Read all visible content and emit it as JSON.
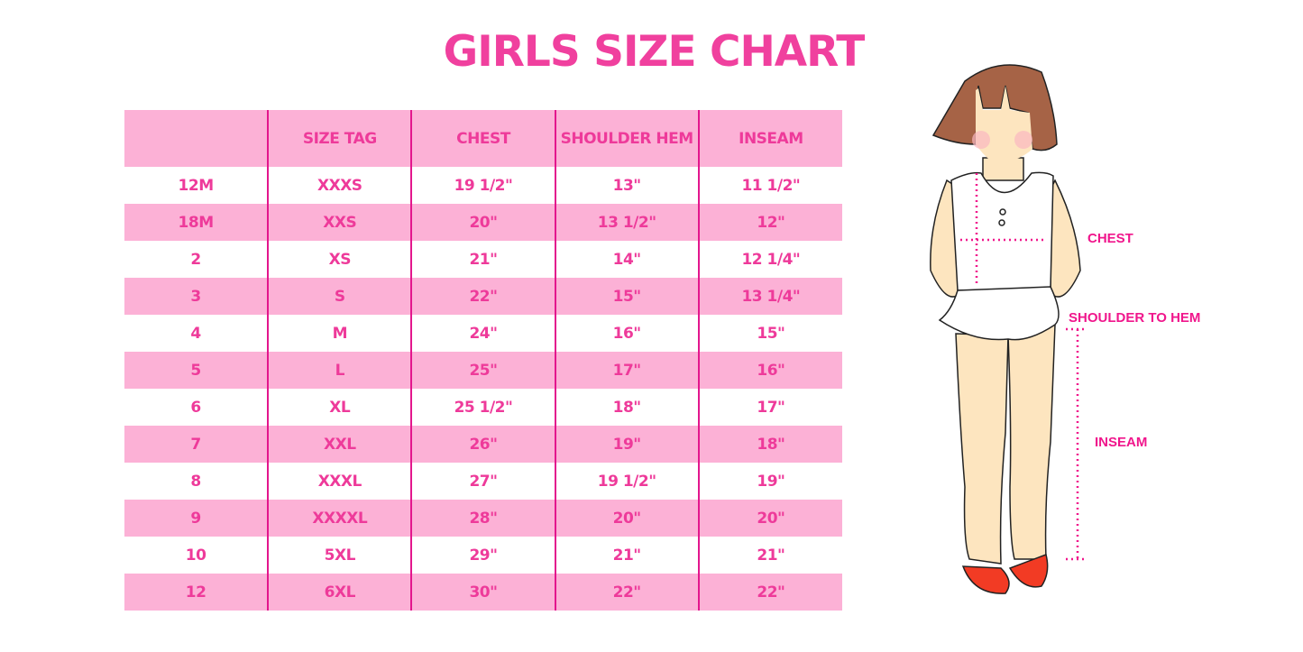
{
  "title": "GIRLS SIZE CHART",
  "table": {
    "headers": [
      "",
      "SIZE TAG",
      "CHEST",
      "SHOULDER HEM",
      "INSEAM"
    ],
    "rows": [
      [
        "12M",
        "XXXS",
        "19 1/2\"",
        "13\"",
        "11 1/2\""
      ],
      [
        "18M",
        "XXS",
        "20\"",
        "13 1/2\"",
        "12\""
      ],
      [
        "2",
        "XS",
        "21\"",
        "14\"",
        "12 1/4\""
      ],
      [
        "3",
        "S",
        "22\"",
        "15\"",
        "13 1/4\""
      ],
      [
        "4",
        "M",
        "24\"",
        "16\"",
        "15\""
      ],
      [
        "5",
        "L",
        "25\"",
        "17\"",
        "16\""
      ],
      [
        "6",
        "XL",
        "25 1/2\"",
        "18\"",
        "17\""
      ],
      [
        "7",
        "XXL",
        "26\"",
        "19\"",
        "18\""
      ],
      [
        "8",
        "XXXL",
        "27\"",
        "19 1/2\"",
        "19\""
      ],
      [
        "9",
        "XXXXL",
        "28\"",
        "20\"",
        "20\""
      ],
      [
        "10",
        "5XL",
        "29\"",
        "21\"",
        "21\""
      ],
      [
        "12",
        "6XL",
        "30\"",
        "22\"",
        "22\""
      ]
    ]
  },
  "figure": {
    "labels": {
      "chest": "CHEST",
      "shoulder_to_hem": "SHOULDER TO HEM",
      "inseam": "INSEAM"
    }
  },
  "colors": {
    "pink_band": "#fcb1d6",
    "text": "#ee3a9a",
    "divider": "#e3168d",
    "measure": "#f0168c"
  }
}
